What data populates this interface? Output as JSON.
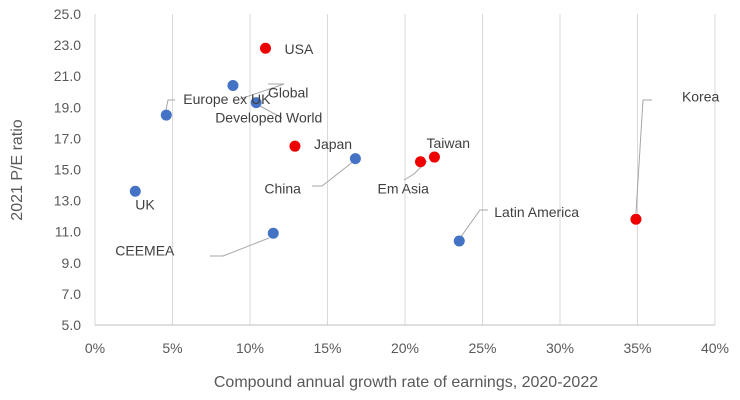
{
  "chart_data": {
    "type": "scatter",
    "title": "",
    "xlabel": "Compound annual growth rate of earnings, 2020-2022",
    "ylabel": "2021 P/E ratio",
    "xlim": [
      0,
      40
    ],
    "ylim": [
      5,
      25
    ],
    "x_ticks": [
      "0%",
      "5%",
      "10%",
      "15%",
      "20%",
      "25%",
      "30%",
      "35%",
      "40%"
    ],
    "y_ticks": [
      "5.0",
      "7.0",
      "9.0",
      "11.0",
      "13.0",
      "15.0",
      "17.0",
      "19.0",
      "21.0",
      "23.0",
      "25.0"
    ],
    "grid": "vertical",
    "colors": {
      "blue": "#4472c4",
      "red": "#ee0000"
    },
    "points": [
      {
        "name": "USA",
        "x": 11.0,
        "y": 22.8,
        "color": "red"
      },
      {
        "name": "Global",
        "x": 8.9,
        "y": 20.4,
        "color": "blue"
      },
      {
        "name": "Europe ex UK",
        "x": 4.6,
        "y": 18.5,
        "color": "blue"
      },
      {
        "name": "Developed World",
        "x": 10.4,
        "y": 19.3,
        "color": "blue"
      },
      {
        "name": "Japan",
        "x": 12.9,
        "y": 16.5,
        "color": "red"
      },
      {
        "name": "China",
        "x": 16.8,
        "y": 15.7,
        "color": "blue"
      },
      {
        "name": "Em Asia",
        "x": 21.0,
        "y": 15.5,
        "color": "red"
      },
      {
        "name": "Taiwan",
        "x": 21.9,
        "y": 15.8,
        "color": "red"
      },
      {
        "name": "UK",
        "x": 2.6,
        "y": 13.6,
        "color": "blue"
      },
      {
        "name": "CEEMEA",
        "x": 11.5,
        "y": 10.9,
        "color": "blue"
      },
      {
        "name": "Latin America",
        "x": 23.5,
        "y": 10.4,
        "color": "blue"
      },
      {
        "name": "Korea",
        "x": 34.9,
        "y": 11.8,
        "color": "red"
      }
    ]
  }
}
